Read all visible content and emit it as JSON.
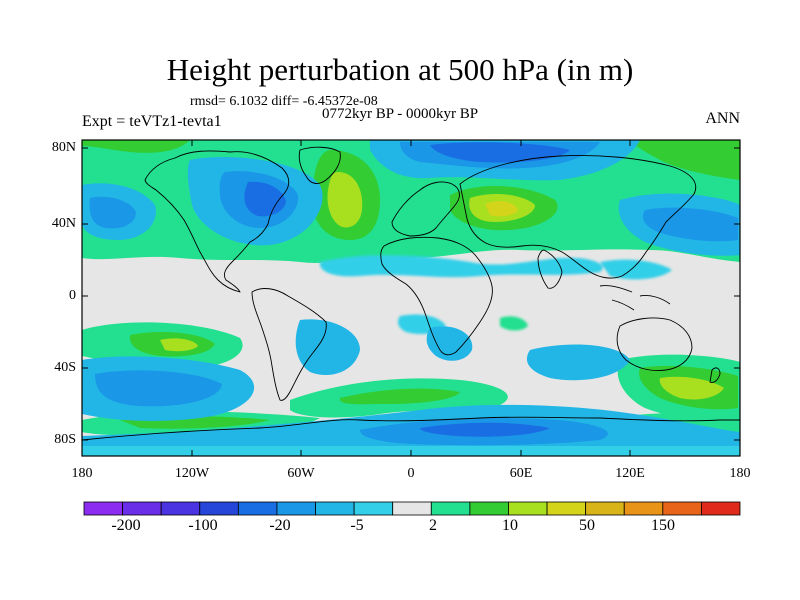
{
  "title": "Height perturbation at 500 hPa (in m)",
  "stats": "rmsd= 6.1032 diff= -6.45372e-08",
  "period": "0772kyr BP - 0000kyr BP",
  "experiment": "Expt = teVTz1-tevta1",
  "season": "ANN",
  "map": {
    "lat_ticks": [
      "80N",
      "40N",
      "0",
      "40S",
      "80S"
    ],
    "lon_ticks": [
      "180",
      "120W",
      "60W",
      "0",
      "60E",
      "120E",
      "180"
    ]
  },
  "colorbar": {
    "colors": [
      "#8b2cf0",
      "#6a2ee8",
      "#4a33e0",
      "#2546d8",
      "#1a6ee3",
      "#1a97e6",
      "#22b6e6",
      "#33cfe8",
      "#e6e6e6",
      "#22e090",
      "#33cc33",
      "#a8e020",
      "#d4d41a",
      "#d8b418",
      "#e89418",
      "#e8641a",
      "#e02a1c"
    ],
    "labels": [
      "-200",
      "-100",
      "-20",
      "-5",
      "2",
      "10",
      "50",
      "150"
    ]
  },
  "colors": {
    "neutral": "#e6e6e6",
    "land_outline": "#000000"
  }
}
